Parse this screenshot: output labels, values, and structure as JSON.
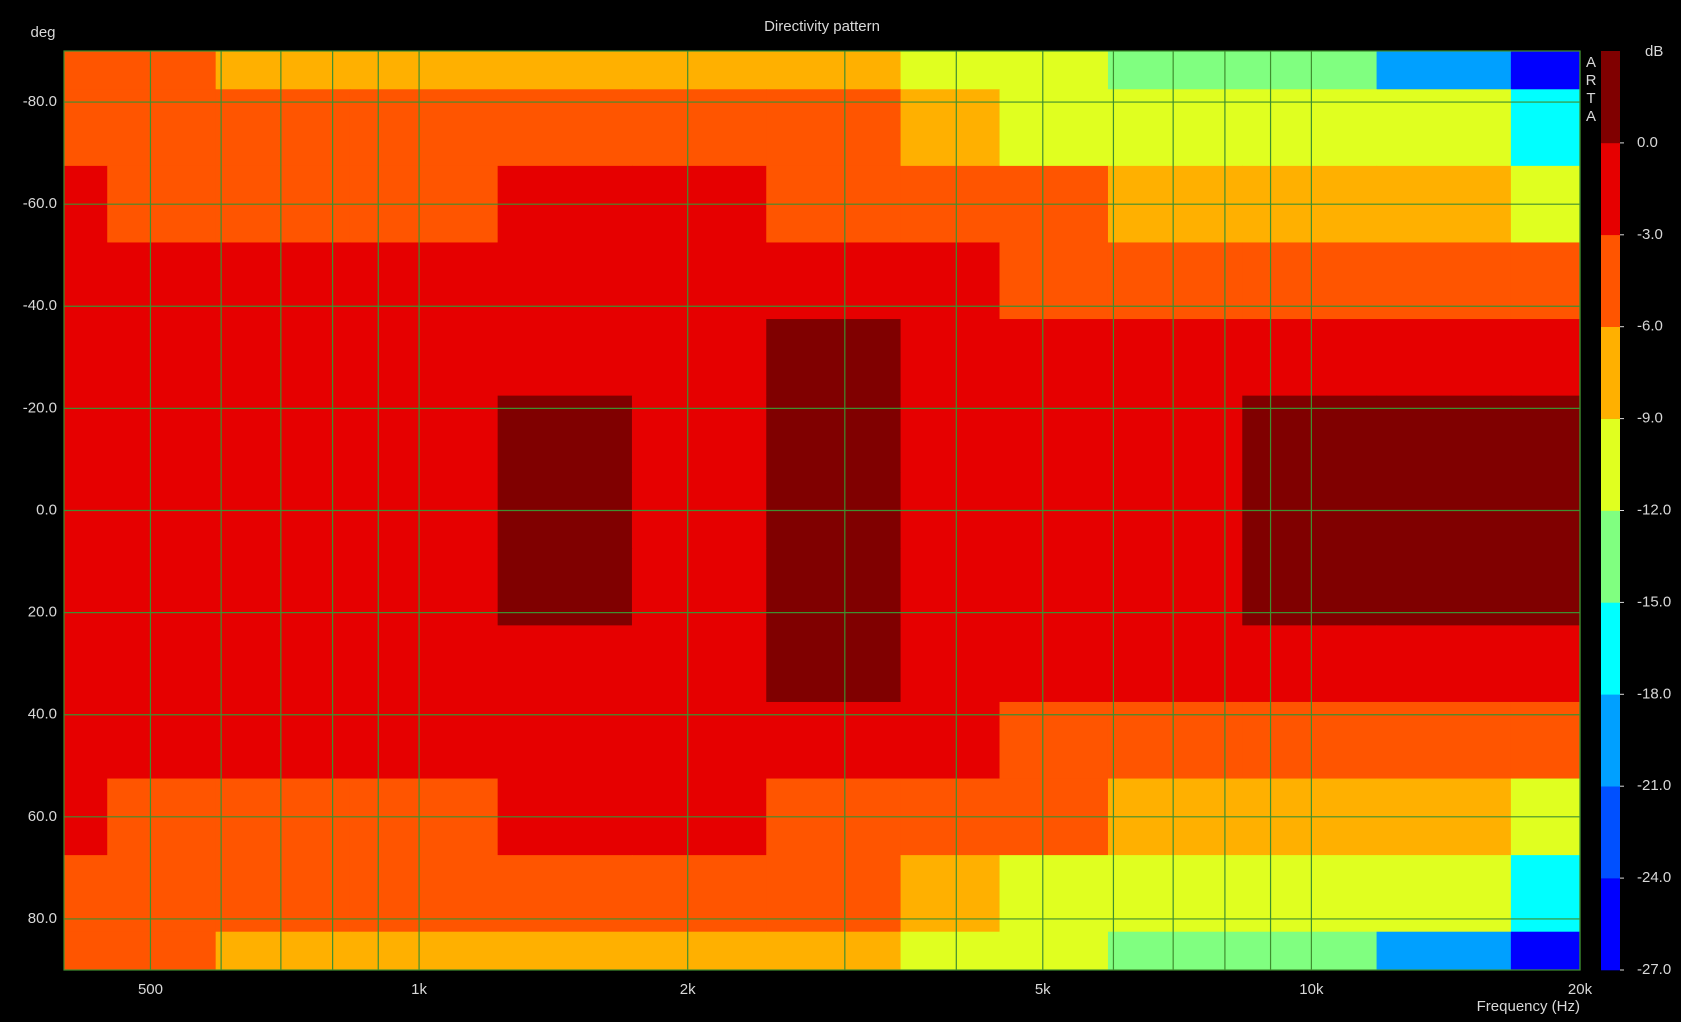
{
  "chart_data": {
    "type": "contour",
    "title": "Directivity pattern",
    "x_label": "Frequency (Hz)",
    "y_label": "deg",
    "colorbar_label": "dB",
    "logo": "ARTA",
    "x_log": true,
    "grid": true,
    "grid_color": "#3f8f2f",
    "xlim": [
      400,
      20000
    ],
    "xticks": [
      500,
      {
        "value": 1000,
        "label": "1k"
      },
      {
        "value": 2000,
        "label": "2k"
      },
      {
        "value": 5000,
        "label": "5k"
      },
      {
        "value": 10000,
        "label": "10k"
      },
      {
        "value": 20000,
        "label": "20k"
      }
    ],
    "xminor": [
      600,
      700,
      800,
      900,
      3000,
      4000,
      6000,
      7000,
      8000,
      9000
    ],
    "ylim": [
      -90,
      90
    ],
    "yticks": [
      {
        "value": -80,
        "label": "-80.0"
      },
      {
        "value": -60,
        "label": "-60.0"
      },
      {
        "value": -40,
        "label": "-40.0"
      },
      {
        "value": -20,
        "label": "-20.0"
      },
      {
        "value": 0,
        "label": "0.0"
      },
      {
        "value": 20,
        "label": "20.0"
      },
      {
        "value": 40,
        "label": "40.0"
      },
      {
        "value": 60,
        "label": "60.0"
      },
      {
        "value": 80,
        "label": "80.0"
      }
    ],
    "zlim": [
      -27,
      3
    ],
    "levels": [
      -27,
      -24,
      -21,
      -18,
      -15,
      -12,
      -9,
      -6,
      -3,
      0,
      3
    ],
    "colors": [
      "#0000ff",
      "#0050ff",
      "#00a0ff",
      "#00ffff",
      "#80ff80",
      "#e0ff20",
      "#ffb000",
      "#ff5500",
      "#e60000",
      "#800000"
    ],
    "zticks": [
      {
        "value": 0,
        "label": "0.0"
      },
      {
        "value": -3,
        "label": "-3.0"
      },
      {
        "value": -6,
        "label": "-6.0"
      },
      {
        "value": -9,
        "label": "-9.0"
      },
      {
        "value": -12,
        "label": "-12.0"
      },
      {
        "value": -15,
        "label": "-15.0"
      },
      {
        "value": -18,
        "label": "-18.0"
      },
      {
        "value": -21,
        "label": "-21.0"
      },
      {
        "value": -24,
        "label": "-24.0"
      },
      {
        "value": -27,
        "label": "-27.0"
      }
    ],
    "x": [
      400,
      500,
      700,
      1000,
      1500,
      2000,
      3000,
      4000,
      5000,
      7000,
      10000,
      14000,
      20000
    ],
    "y": [
      -90,
      -75,
      -60,
      -45,
      -30,
      -15,
      0,
      15,
      30,
      45,
      60,
      75,
      90
    ],
    "z": [
      [
        -5,
        -5.5,
        -7,
        -7,
        -6.5,
        -6.5,
        -8.5,
        -9.5,
        -11,
        -13,
        -15,
        -19,
        -25
      ],
      [
        -4,
        -4.5,
        -5,
        -5,
        -4.5,
        -4.5,
        -6,
        -8,
        -9.5,
        -10,
        -12,
        -12,
        -16
      ],
      [
        -2.5,
        -3.5,
        -4,
        -3.5,
        -2.5,
        -2.5,
        -3.5,
        -5,
        -6,
        -8,
        -9,
        -8,
        -10
      ],
      [
        -2,
        -2,
        -2,
        -2,
        -1.5,
        -1.5,
        -1.5,
        -2.5,
        -4,
        -4.5,
        -5.5,
        -4,
        -5
      ],
      [
        -1.5,
        -1.5,
        -1.5,
        -1.2,
        -1,
        -1,
        0.5,
        -1.5,
        -2,
        -2.5,
        -2,
        -1,
        -2
      ],
      [
        -1,
        -1,
        -1,
        -1,
        0.3,
        -0.5,
        1,
        -0.5,
        -1,
        -1.5,
        0.5,
        0.3,
        0.2
      ],
      [
        -1,
        -1,
        -1,
        -0.8,
        0.5,
        -0.5,
        1,
        -0.5,
        -1,
        -1,
        0.5,
        0.5,
        0.2
      ],
      [
        -1,
        -1,
        -1,
        -1,
        0.3,
        -0.5,
        1,
        -0.5,
        -1,
        -1.5,
        0.5,
        0.3,
        0.2
      ],
      [
        -1.5,
        -1.5,
        -1.5,
        -1.2,
        -1,
        -1,
        0.5,
        -1.5,
        -2,
        -2.5,
        -2,
        -1,
        -2
      ],
      [
        -2,
        -2,
        -2,
        -2,
        -1.5,
        -1.5,
        -1.5,
        -2.5,
        -4,
        -4.5,
        -5.5,
        -4,
        -5
      ],
      [
        -2.5,
        -3.5,
        -4,
        -3.5,
        -2.5,
        -2.5,
        -3.5,
        -5,
        -6,
        -8,
        -9,
        -8,
        -10
      ],
      [
        -4,
        -4.5,
        -5,
        -5,
        -4.5,
        -4.5,
        -6,
        -8,
        -9.5,
        -10,
        -12,
        -12,
        -16
      ],
      [
        -5,
        -5.5,
        -7,
        -7,
        -6.5,
        -6.5,
        -8.5,
        -9.5,
        -11,
        -13,
        -15,
        -19,
        -25
      ]
    ]
  }
}
